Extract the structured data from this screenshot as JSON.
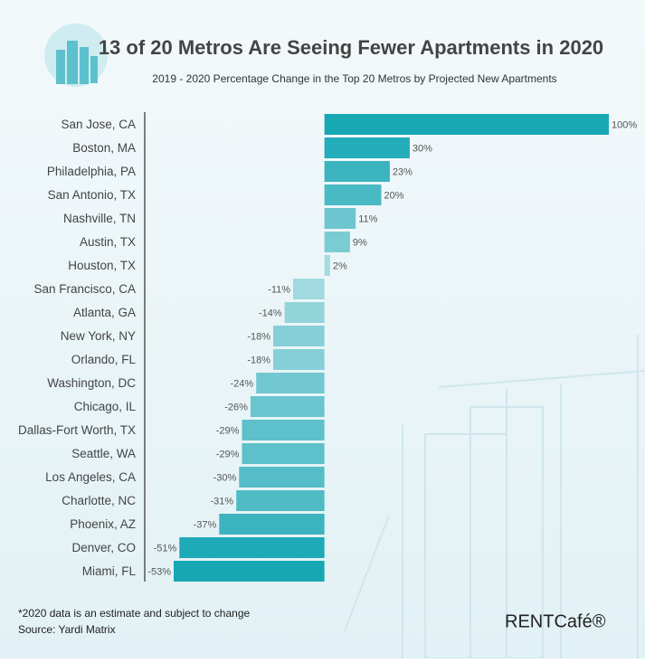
{
  "chart_data": {
    "type": "bar",
    "orientation": "horizontal",
    "title": "13 of 20 Metros Are Seeing Fewer Apartments in 2020",
    "subtitle": "2019 - 2020 Percentage Change in the Top 20 Metros by Projected New Apartments",
    "categories": [
      "San Jose, CA",
      "Boston, MA",
      "Philadelphia, PA",
      "San Antonio, TX",
      "Nashville, TN",
      "Austin, TX",
      "Houston, TX",
      "San Francisco, CA",
      "Atlanta, GA",
      "New York, NY",
      "Orlando, FL",
      "Washington, DC",
      "Chicago, IL",
      "Dallas-Fort Worth, TX",
      "Seattle, WA",
      "Los Angeles, CA",
      "Charlotte, NC",
      "Phoenix, AZ",
      "Denver, CO",
      "Miami, FL"
    ],
    "values": [
      100,
      30,
      23,
      20,
      11,
      9,
      2,
      -11,
      -14,
      -18,
      -18,
      -24,
      -26,
      -29,
      -29,
      -30,
      -31,
      -37,
      -51,
      -53
    ],
    "value_labels": [
      "100%",
      "30%",
      "23%",
      "20%",
      "11%",
      "9%",
      "2%",
      "-11%",
      "-14%",
      "-18%",
      "-18%",
      "-24%",
      "-26%",
      "-29%",
      "-29%",
      "-30%",
      "-31%",
      "-37%",
      "-51%",
      "-53%"
    ],
    "colors": [
      "#17a8b4",
      "#23acb9",
      "#3bb4c0",
      "#49b9c4",
      "#6dc6cf",
      "#7bcbd3",
      "#a3dbe0",
      "#a0d9df",
      "#93d4db",
      "#86cfd7",
      "#86cfd7",
      "#72c8d1",
      "#6ac5ce",
      "#5ec0ca",
      "#5ec0ca",
      "#55bdc7",
      "#4fbbc5",
      "#3cb4bf",
      "#1eaab6",
      "#16a7b3"
    ],
    "xlim": [
      -53,
      100
    ],
    "notes": [
      "*2020 data is an estimate and subject to change",
      "Source: Yardi Matrix"
    ],
    "logo": "RENTCafé®"
  }
}
